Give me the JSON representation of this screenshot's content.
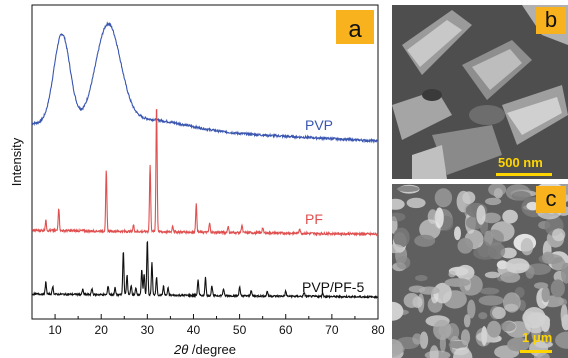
{
  "chart_data": {
    "type": "line",
    "panel_label": "a",
    "xlabel_italic": "2θ",
    "xlabel_rest": " /degree",
    "ylabel": "Intensity",
    "xlim": [
      5,
      80
    ],
    "xticks": [
      10,
      20,
      30,
      40,
      50,
      60,
      70,
      80
    ],
    "yticks": false,
    "grid": false,
    "legend": "none",
    "series": [
      {
        "name": "PVP",
        "color": "#3a56b0",
        "profile": {
          "baseline_start": 0.18,
          "baseline_end": 0.04,
          "broad_peaks": [
            [
              11.5,
              0.72,
              2.5
            ],
            [
              21.5,
              0.78,
              3.8
            ]
          ]
        }
      },
      {
        "name": "PF",
        "color": "#e05050",
        "profile": {
          "baseline_start": 0.06,
          "baseline_end": 0.03,
          "sharp_peaks": [
            [
              8.0,
              0.08
            ],
            [
              10.8,
              0.18
            ],
            [
              21.1,
              0.47
            ],
            [
              27.0,
              0.05
            ],
            [
              30.6,
              0.52
            ],
            [
              32.0,
              1.0
            ],
            [
              35.5,
              0.05
            ],
            [
              40.6,
              0.22
            ],
            [
              43.5,
              0.07
            ],
            [
              47.5,
              0.05
            ],
            [
              50.5,
              0.06
            ],
            [
              55.0,
              0.04
            ],
            [
              63.0,
              0.04
            ]
          ]
        }
      },
      {
        "name": "PVP/PF-5",
        "color": "#111111",
        "profile": {
          "baseline_start": 0.06,
          "baseline_end": 0.03,
          "sharp_peaks": [
            [
              8.0,
              0.12
            ],
            [
              9.5,
              0.08
            ],
            [
              16.0,
              0.05
            ],
            [
              18.0,
              0.06
            ],
            [
              21.5,
              0.09
            ],
            [
              23.0,
              0.07
            ],
            [
              24.8,
              0.44
            ],
            [
              25.6,
              0.2
            ],
            [
              26.5,
              0.1
            ],
            [
              27.5,
              0.07
            ],
            [
              28.8,
              0.26
            ],
            [
              29.3,
              0.21
            ],
            [
              30.0,
              0.55
            ],
            [
              31.0,
              0.32
            ],
            [
              32.0,
              0.18
            ],
            [
              33.5,
              0.09
            ],
            [
              34.5,
              0.07
            ],
            [
              41.0,
              0.16
            ],
            [
              42.6,
              0.18
            ],
            [
              44.0,
              0.1
            ],
            [
              46.5,
              0.07
            ],
            [
              50.0,
              0.09
            ],
            [
              52.5,
              0.06
            ],
            [
              56.0,
              0.05
            ],
            [
              60.0,
              0.05
            ],
            [
              64.0,
              0.04
            ],
            [
              68.0,
              0.04
            ]
          ]
        }
      }
    ]
  },
  "sem_panels": [
    {
      "label": "b",
      "scale_text": "500 nm"
    },
    {
      "label": "c",
      "scale_text": "1 μm"
    }
  ]
}
